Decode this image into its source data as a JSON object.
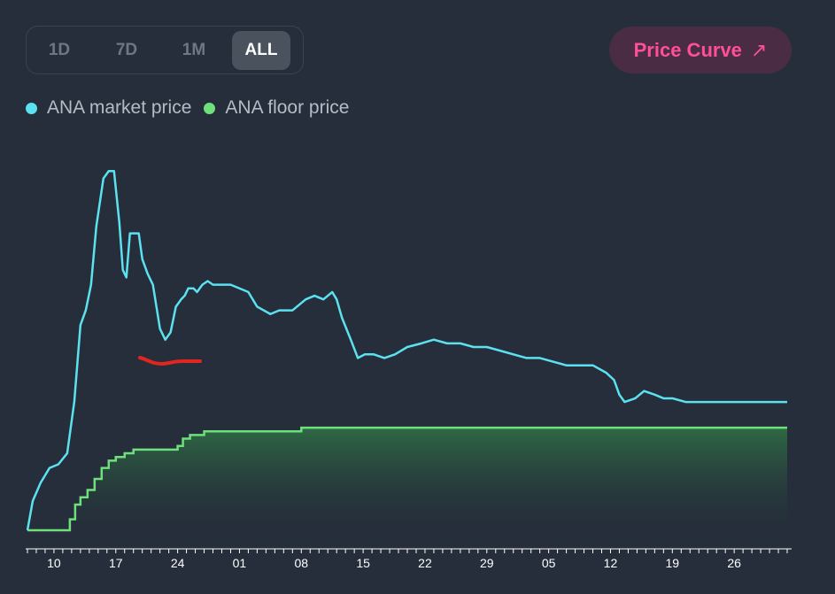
{
  "range_tabs": [
    {
      "label": "1D",
      "active": false
    },
    {
      "label": "7D",
      "active": false
    },
    {
      "label": "1M",
      "active": false
    },
    {
      "label": "ALL",
      "active": true
    }
  ],
  "price_curve_button": {
    "label": "Price Curve",
    "icon": "arrow-up-right-icon",
    "color": "#ff4f9a"
  },
  "legend": [
    {
      "label": "ANA market price",
      "color": "#5ce1f0"
    },
    {
      "label": "ANA floor price",
      "color": "#6ee07c"
    }
  ],
  "chart_data": {
    "type": "line",
    "title": "",
    "xlabel": "",
    "ylabel": "",
    "x_tick_labels": [
      "10",
      "17",
      "24",
      "01",
      "08",
      "15",
      "22",
      "29",
      "05",
      "12",
      "19",
      "26"
    ],
    "x_range_days": [
      6.8,
      93.5
    ],
    "x_tick_days": [
      10,
      17,
      24,
      31,
      38,
      45,
      52,
      59,
      66,
      73,
      80,
      87
    ],
    "y_range": [
      0,
      100
    ],
    "grid": false,
    "legend_position": "top-left",
    "series": [
      {
        "name": "ANA market price",
        "color": "#5ce1f0",
        "points": [
          [
            7.0,
            0
          ],
          [
            7.6,
            8
          ],
          [
            8.5,
            13
          ],
          [
            9.5,
            17
          ],
          [
            10.5,
            18
          ],
          [
            11.5,
            21
          ],
          [
            12.3,
            35
          ],
          [
            13.0,
            56
          ],
          [
            13.6,
            60
          ],
          [
            14.2,
            67
          ],
          [
            14.8,
            83
          ],
          [
            15.6,
            96
          ],
          [
            16.2,
            98
          ],
          [
            16.8,
            98
          ],
          [
            17.4,
            84
          ],
          [
            17.8,
            71
          ],
          [
            18.2,
            69
          ],
          [
            18.6,
            81
          ],
          [
            19.2,
            81
          ],
          [
            19.6,
            81
          ],
          [
            20.0,
            74
          ],
          [
            20.6,
            70
          ],
          [
            21.2,
            67
          ],
          [
            21.6,
            61
          ],
          [
            22.0,
            55
          ],
          [
            22.6,
            52
          ],
          [
            23.2,
            54
          ],
          [
            23.8,
            61
          ],
          [
            24.4,
            63
          ],
          [
            24.8,
            64
          ],
          [
            25.2,
            66
          ],
          [
            25.8,
            66
          ],
          [
            26.2,
            65
          ],
          [
            26.8,
            67
          ],
          [
            27.4,
            68
          ],
          [
            28.0,
            67
          ],
          [
            29.0,
            67
          ],
          [
            30.0,
            67
          ],
          [
            31.0,
            66
          ],
          [
            32.0,
            65
          ],
          [
            33.0,
            61
          ],
          [
            34.5,
            59
          ],
          [
            35.5,
            60
          ],
          [
            37.0,
            60
          ],
          [
            38.5,
            63
          ],
          [
            39.5,
            64
          ],
          [
            40.5,
            63
          ],
          [
            41.5,
            65
          ],
          [
            42.0,
            63
          ],
          [
            42.6,
            58
          ],
          [
            43.6,
            52
          ],
          [
            44.4,
            47
          ],
          [
            45.2,
            48
          ],
          [
            46.2,
            48
          ],
          [
            47.4,
            47
          ],
          [
            48.6,
            48
          ],
          [
            50.0,
            50
          ],
          [
            51.6,
            51
          ],
          [
            53.0,
            52
          ],
          [
            54.5,
            51
          ],
          [
            56.0,
            51
          ],
          [
            57.5,
            50
          ],
          [
            59.0,
            50
          ],
          [
            60.5,
            49
          ],
          [
            62.0,
            48
          ],
          [
            63.5,
            47
          ],
          [
            65.0,
            47
          ],
          [
            66.5,
            46
          ],
          [
            68.0,
            45
          ],
          [
            69.5,
            45
          ],
          [
            71.0,
            45
          ],
          [
            72.5,
            43
          ],
          [
            73.4,
            41
          ],
          [
            74.0,
            37
          ],
          [
            74.6,
            35
          ],
          [
            75.8,
            36
          ],
          [
            76.8,
            38
          ],
          [
            78.0,
            37
          ],
          [
            79.0,
            36
          ],
          [
            80.0,
            36
          ],
          [
            81.5,
            35
          ],
          [
            83.0,
            35
          ],
          [
            85.0,
            35
          ],
          [
            87.0,
            35
          ],
          [
            89.0,
            35
          ],
          [
            91.0,
            35
          ],
          [
            93.0,
            35
          ]
        ]
      },
      {
        "name": "ANA floor price",
        "color": "#6ee07c",
        "step": true,
        "points": [
          [
            7.0,
            0
          ],
          [
            11.6,
            0
          ],
          [
            11.8,
            3
          ],
          [
            12.4,
            7
          ],
          [
            13.0,
            9
          ],
          [
            13.8,
            11
          ],
          [
            14.6,
            14
          ],
          [
            15.4,
            17
          ],
          [
            16.2,
            19
          ],
          [
            17.0,
            20
          ],
          [
            18.0,
            21
          ],
          [
            19.0,
            22
          ],
          [
            22.0,
            22
          ],
          [
            24.0,
            23
          ],
          [
            24.6,
            25
          ],
          [
            25.4,
            26
          ],
          [
            26.0,
            26
          ],
          [
            27.0,
            27
          ],
          [
            30.0,
            27
          ],
          [
            37.0,
            27
          ],
          [
            38.0,
            28
          ],
          [
            41.5,
            28
          ],
          [
            43.0,
            28
          ],
          [
            50.0,
            28
          ],
          [
            60.0,
            28
          ],
          [
            70.0,
            28
          ],
          [
            80.0,
            28
          ],
          [
            93.0,
            28
          ]
        ]
      }
    ]
  },
  "annotation": {
    "shape": "red-stroke",
    "color": "#e0261f"
  }
}
